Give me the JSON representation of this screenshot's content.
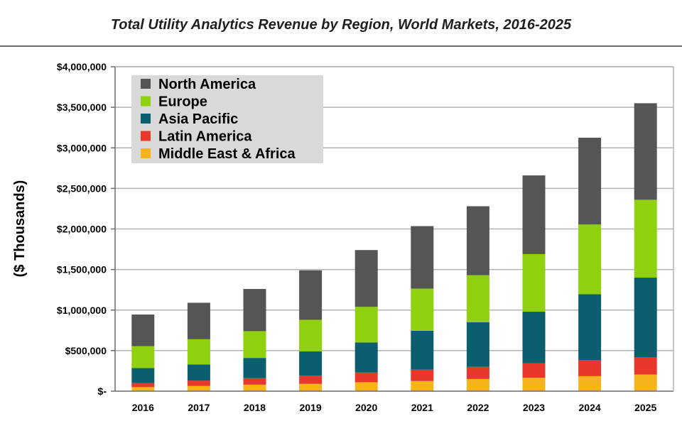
{
  "chart_data": {
    "type": "bar",
    "stacked": true,
    "title": "Total Utility Analytics Revenue by Region, World Markets, 2016-2025",
    "xlabel": "",
    "ylabel": "($ Thousands)",
    "ylim": [
      0,
      4000000
    ],
    "yticks": [
      "$-",
      "$500,000",
      "$1,000,000",
      "$1,500,000",
      "$2,000,000",
      "$2,500,000",
      "$3,000,000",
      "$3,500,000",
      "$4,000,000"
    ],
    "grid": true,
    "legend_position": "top-left",
    "categories": [
      "2016",
      "2017",
      "2018",
      "2019",
      "2020",
      "2021",
      "2022",
      "2023",
      "2024",
      "2025"
    ],
    "series": [
      {
        "name": "Middle East & Africa",
        "color": "#f5b41b",
        "values": [
          50000,
          65000,
          80000,
          90000,
          110000,
          125000,
          150000,
          165000,
          185000,
          205000
        ]
      },
      {
        "name": "Latin America",
        "color": "#e8372b",
        "values": [
          50000,
          65000,
          80000,
          100000,
          120000,
          140000,
          150000,
          180000,
          200000,
          215000
        ]
      },
      {
        "name": "Asia Pacific",
        "color": "#0b5e6e",
        "values": [
          185000,
          200000,
          250000,
          300000,
          370000,
          480000,
          550000,
          635000,
          810000,
          980000
        ]
      },
      {
        "name": "Europe",
        "color": "#8fd10f",
        "values": [
          270000,
          310000,
          330000,
          390000,
          440000,
          520000,
          580000,
          710000,
          860000,
          960000
        ]
      },
      {
        "name": "North America",
        "color": "#555555",
        "values": [
          390000,
          450000,
          520000,
          610000,
          700000,
          770000,
          850000,
          970000,
          1070000,
          1190000
        ]
      }
    ],
    "legend_order": [
      "North America",
      "Europe",
      "Asia Pacific",
      "Latin America",
      "Middle East & Africa"
    ]
  }
}
